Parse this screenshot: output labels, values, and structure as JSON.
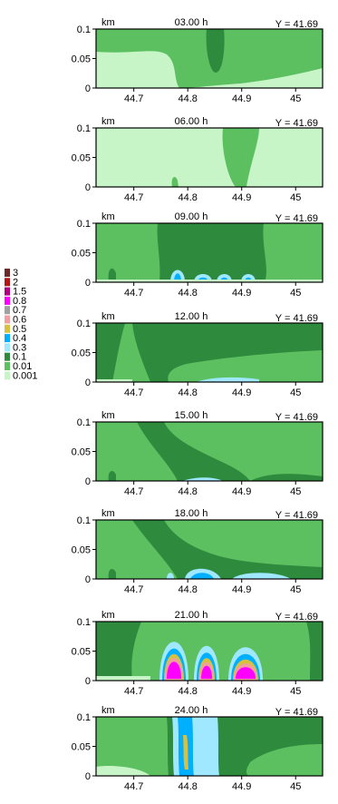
{
  "chart_data": {
    "type": "heatmap",
    "legend": {
      "placement": "left",
      "levels": [
        "3",
        "2",
        "1.5",
        "0.8",
        "0.7",
        "0.6",
        "0.5",
        "0.4",
        "0.3",
        "0.1",
        "0.01",
        "0.001"
      ],
      "colors": [
        "#6b2a2a",
        "#b01818",
        "#b00080",
        "#ff00ff",
        "#a0a0a0",
        "#f0a0a0",
        "#d8c040",
        "#00b0ff",
        "#9fe8ff",
        "#2e8b3e",
        "#5cc060",
        "#c8f5c8"
      ]
    },
    "x_ticks": [
      "44.7",
      "44.8",
      "44.9",
      "45"
    ],
    "x_tick_values": [
      44.7,
      44.8,
      44.9,
      45.0
    ],
    "y_ticks": [
      "0",
      "0.05",
      "0.1"
    ],
    "y_tick_values": [
      0,
      0.05,
      0.1
    ],
    "xlim": [
      44.63,
      45.05
    ],
    "ylim": [
      0,
      0.1
    ],
    "y_unit_label": "km",
    "panels": [
      {
        "time_label": "03.00 h",
        "y_label": "Y = 41.69"
      },
      {
        "time_label": "06.00 h",
        "y_label": "Y = 41.69"
      },
      {
        "time_label": "09.00 h",
        "y_label": "Y = 41.69"
      },
      {
        "time_label": "12.00 h",
        "y_label": "Y = 41.69"
      },
      {
        "time_label": "15.00 h",
        "y_label": "Y = 41.69"
      },
      {
        "time_label": "18.00 h",
        "y_label": "Y = 41.69"
      },
      {
        "time_label": "21.00 h",
        "y_label": "Y = 41.69"
      },
      {
        "time_label": "24.00 h",
        "y_label": "Y = 41.69"
      }
    ]
  }
}
